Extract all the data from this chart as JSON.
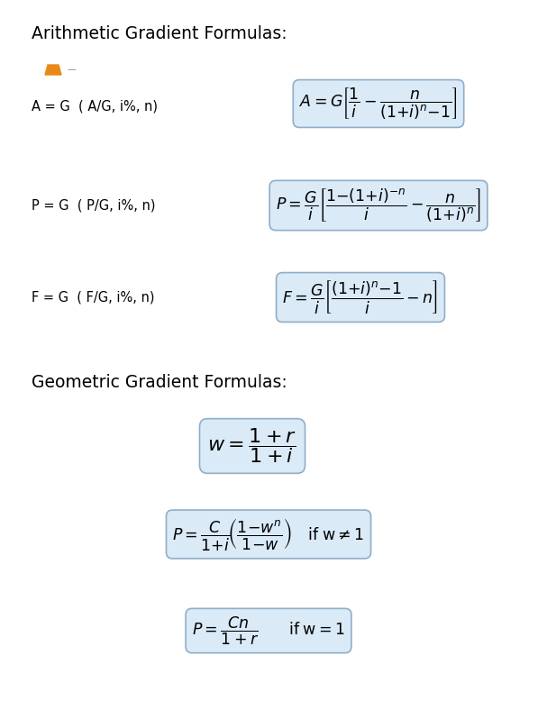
{
  "bg_color": "#ffffff",
  "box_color": "#daeaf7",
  "box_edge_color": "#90aec8",
  "title1": "Arithmetic Gradient Formulas:",
  "title2": "Geometric Gradient Formulas:",
  "label_A": "A = G  ( A/G, i%, n)",
  "label_P": "P = G  ( P/G, i%, n)",
  "label_F": "F = G  ( F/G, i%, n)",
  "formula_A": "$\\mathit{A} = \\mathit{G}\\left[\\dfrac{1}{i} - \\dfrac{n}{(1{+}i)^{n}{-}1}\\right]$",
  "formula_P": "$\\mathit{P} = \\dfrac{\\mathit{G}}{i}\\left[\\dfrac{1{-}(1{+}i)^{-n}}{i} - \\dfrac{n}{(1{+}i)^{n}}\\right]$",
  "formula_F": "$\\mathit{F} = \\dfrac{\\mathit{G}}{i}\\left[\\dfrac{(1{+}i)^{n}{-}1}{i} -n\\right]$",
  "formula_w": "$w = \\dfrac{1+r}{1+i}$",
  "formula_Pw": "$\\mathit{P} = \\dfrac{C}{1{+}i}\\!\\left(\\dfrac{1{-}w^{n}}{1{-}w}\\right)\\quad \\mathrm{if\\;w} \\neq 1$",
  "formula_Pw1": "$\\mathit{P} = \\dfrac{Cn}{1+r} \\qquad \\mathrm{if\\;w} = 1$",
  "orange_color": "#e8891a",
  "title_fontsize": 13.5,
  "label_fontsize": 10.5,
  "formula_fontsize": 12.5
}
